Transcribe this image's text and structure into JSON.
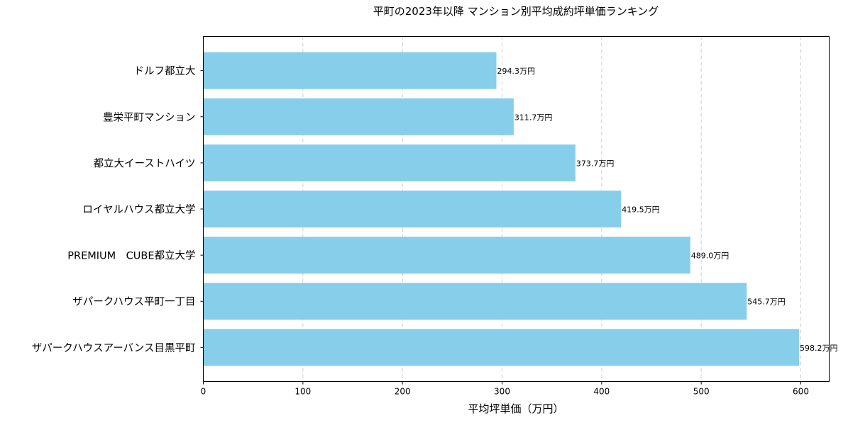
{
  "chart_data": {
    "type": "bar",
    "orientation": "horizontal",
    "title": "平町の2023年以降 マンション別平均成約坪単価ランキング",
    "xlabel": "平均坪単価（万円）",
    "ylabel": "",
    "categories": [
      "ドルフ都立大",
      "豊栄平町マンション",
      "都立大イーストハイツ",
      "ロイヤルハウス都立大学",
      "PREMIUM　CUBE都立大学",
      "ザパークハウス平町一丁目",
      "ザパークハウスアーバンス目黒平町"
    ],
    "values": [
      294.3,
      311.7,
      373.7,
      419.5,
      489.0,
      545.7,
      598.2
    ],
    "data_labels": [
      "294.3万円",
      "311.7万円",
      "373.7万円",
      "419.5万円",
      "489.0万円",
      "545.7万円",
      "598.2万円"
    ],
    "xlim": [
      0,
      628.5
    ],
    "xticks": [
      0,
      100,
      200,
      300,
      400,
      500,
      600
    ],
    "grid": "x-axis dashed",
    "bar_color": "#87ceeb",
    "grid_color": "#cccccc"
  }
}
